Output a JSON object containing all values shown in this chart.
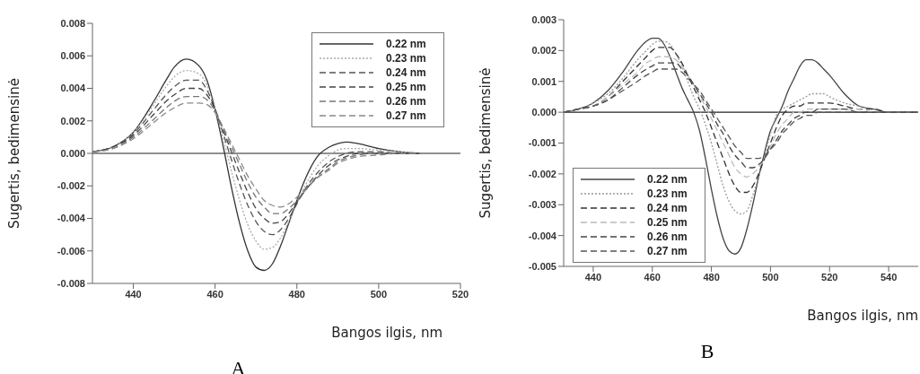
{
  "chart_data": [
    {
      "type": "line",
      "xlabel": "Bangos ilgis, nm",
      "ylabel": "Sugertis, bedimensinė",
      "annotations": [
        "A"
      ],
      "x": [
        430,
        435,
        440,
        445,
        448,
        450,
        453,
        456,
        458,
        460,
        462,
        464,
        466,
        468,
        470,
        472,
        474,
        476,
        478,
        480,
        482,
        485,
        488,
        490,
        492,
        495,
        500,
        505,
        510
      ],
      "xlim": [
        430,
        520
      ],
      "xticks": [
        440,
        460,
        480,
        500,
        520
      ],
      "ylim": [
        -0.008,
        0.008
      ],
      "yticks": [
        -0.008,
        -0.006,
        -0.004,
        -0.002,
        {
          "value": 0,
          "label": "0.000"
        },
        0.002,
        0.004,
        0.006,
        0.008
      ],
      "ref_lines": [
        {
          "axis": "y",
          "value": 0,
          "color": "#222222"
        }
      ],
      "legend": "top right",
      "grid": false,
      "marker": "none",
      "series": [
        {
          "name": "0.22 nm",
          "color": "#333333",
          "line_style": "solid",
          "values": [
            0.0001,
            0.0004,
            0.0013,
            0.0032,
            0.0045,
            0.0053,
            0.0058,
            0.0054,
            0.0045,
            0.0027,
            0.0004,
            -0.0021,
            -0.0043,
            -0.006,
            -0.007,
            -0.0072,
            -0.0068,
            -0.0057,
            -0.0043,
            -0.0029,
            -0.0016,
            -0.0002,
            0.0004,
            0.0006,
            0.0007,
            0.0006,
            0.0003,
            0.0001,
            0
          ]
        },
        {
          "name": "0.23 nm",
          "color": "#aaaaaa",
          "line_style": "dotted",
          "values": [
            0.0001,
            0.0004,
            0.0013,
            0.003,
            0.0041,
            0.0047,
            0.0051,
            0.0049,
            0.0042,
            0.0027,
            0.0009,
            -0.0011,
            -0.0029,
            -0.0044,
            -0.0054,
            -0.0059,
            -0.0058,
            -0.0052,
            -0.0042,
            -0.0031,
            -0.002,
            -0.0008,
            -0.0001,
            0.0002,
            0.0003,
            0.0003,
            0.0002,
            0.0001,
            0
          ]
        },
        {
          "name": "0.24 nm",
          "color": "#555555",
          "line_style": "dashed",
          "values": [
            0.0001,
            0.0004,
            0.0012,
            0.0027,
            0.0036,
            0.0041,
            0.0045,
            0.0045,
            0.0039,
            0.0027,
            0.0012,
            -0.0004,
            -0.0019,
            -0.0032,
            -0.0042,
            -0.0048,
            -0.005,
            -0.0047,
            -0.004,
            -0.0031,
            -0.0022,
            -0.0012,
            -0.0005,
            -0.0002,
            0,
            0.0001,
            0.0001,
            0,
            0
          ]
        },
        {
          "name": "0.25 nm",
          "color": "#444444",
          "line_style": "dashed",
          "values": [
            0.0001,
            0.0004,
            0.0011,
            0.0024,
            0.0032,
            0.0036,
            0.004,
            0.004,
            0.0036,
            0.0027,
            0.0014,
            0.0001,
            -0.0012,
            -0.0024,
            -0.0034,
            -0.004,
            -0.0043,
            -0.0042,
            -0.0037,
            -0.003,
            -0.0023,
            -0.0014,
            -0.0007,
            -0.0004,
            -0.0002,
            0,
            0,
            0,
            0
          ]
        },
        {
          "name": "0.26 nm",
          "color": "#777777",
          "line_style": "dashed",
          "values": [
            0.0001,
            0.0003,
            0.001,
            0.0021,
            0.0028,
            0.0032,
            0.0035,
            0.0035,
            0.0033,
            0.0026,
            0.0015,
            0.0004,
            -0.0007,
            -0.0018,
            -0.0027,
            -0.0033,
            -0.0037,
            -0.0037,
            -0.0034,
            -0.0029,
            -0.0023,
            -0.0015,
            -0.0009,
            -0.0005,
            -0.0003,
            -0.0001,
            0,
            0,
            0
          ]
        },
        {
          "name": "0.27 nm",
          "color": "#888888",
          "line_style": "dashed",
          "values": [
            0.0001,
            0.0003,
            0.0009,
            0.0019,
            0.0025,
            0.0028,
            0.0031,
            0.0031,
            0.003,
            0.0025,
            0.0016,
            0.0006,
            -0.0004,
            -0.0014,
            -0.0022,
            -0.0029,
            -0.0032,
            -0.0033,
            -0.0031,
            -0.0027,
            -0.0022,
            -0.0015,
            -0.001,
            -0.0006,
            -0.0004,
            -0.0002,
            -0.0001,
            0,
            0
          ]
        }
      ]
    },
    {
      "type": "line",
      "xlabel": "Bangos ilgis, nm",
      "ylabel": "Sugertis, bedimensinė",
      "annotations": [
        "B"
      ],
      "x": [
        430,
        435,
        440,
        445,
        450,
        455,
        458,
        460,
        462,
        464,
        466,
        468,
        470,
        472,
        474,
        476,
        478,
        480,
        482,
        484,
        486,
        488,
        490,
        492,
        494,
        496,
        498,
        500,
        502,
        504,
        506,
        508,
        510,
        512,
        514,
        516,
        518,
        520,
        525,
        530,
        535,
        540,
        545,
        550
      ],
      "xlim": [
        430,
        550
      ],
      "xticks": [
        440,
        460,
        480,
        500,
        520,
        540
      ],
      "ylim": [
        -0.005,
        0.003
      ],
      "yticks": [
        -0.005,
        -0.004,
        -0.003,
        -0.002,
        -0.001,
        {
          "value": 0,
          "label": "0.000"
        },
        0.001,
        0.002,
        0.003
      ],
      "ref_lines": [
        {
          "axis": "y",
          "value": 0,
          "color": "#222222"
        }
      ],
      "legend": "bottom left",
      "grid": false,
      "marker": "none",
      "series": [
        {
          "name": "0.22 nm",
          "color": "#444444",
          "line_style": "solid",
          "values": [
            0,
            0.0001,
            0.0003,
            0.0007,
            0.0013,
            0.002,
            0.0023,
            0.0024,
            0.0024,
            0.0022,
            0.0018,
            0.0013,
            0.0008,
            0.0004,
            0,
            -0.0006,
            -0.0015,
            -0.0025,
            -0.0034,
            -0.0041,
            -0.0045,
            -0.0046,
            -0.0044,
            -0.0038,
            -0.003,
            -0.0021,
            -0.0013,
            -0.0006,
            -0.0002,
            0.0002,
            0.0007,
            0.0011,
            0.0015,
            0.0017,
            0.0017,
            0.0016,
            0.0014,
            0.0012,
            0.0006,
            0.0002,
            0.0001,
            0,
            0,
            0
          ]
        },
        {
          "name": "0.23 nm",
          "color": "#999999",
          "line_style": "dotted",
          "values": [
            0,
            0.0001,
            0.0003,
            0.0006,
            0.0011,
            0.0017,
            0.002,
            0.0022,
            0.0023,
            0.0023,
            0.0022,
            0.0019,
            0.0015,
            0.001,
            0.0005,
            0.0001,
            -0.0004,
            -0.001,
            -0.0017,
            -0.0024,
            -0.0029,
            -0.0032,
            -0.0033,
            -0.0032,
            -0.0027,
            -0.0021,
            -0.0014,
            -0.0007,
            -0.0001,
            0.0001,
            0.0002,
            0.0003,
            0.0004,
            0.0005,
            0.0006,
            0.0006,
            0.0006,
            0.0005,
            0.0003,
            0.0002,
            0.0001,
            0,
            0,
            0
          ]
        },
        {
          "name": "0.24 nm",
          "color": "#333333",
          "line_style": "dashed",
          "values": [
            0,
            0.0001,
            0.0002,
            0.0005,
            0.001,
            0.0015,
            0.0018,
            0.002,
            0.0021,
            0.0021,
            0.0021,
            0.0019,
            0.0016,
            0.0012,
            0.0008,
            0.0004,
            0,
            -0.0005,
            -0.001,
            -0.0015,
            -0.002,
            -0.0024,
            -0.0026,
            -0.0026,
            -0.0024,
            -0.002,
            -0.0015,
            -0.001,
            -0.0005,
            -0.0001,
            0.0001,
            0.0002,
            0.0002,
            0.0003,
            0.0003,
            0.0003,
            0.0003,
            0.0003,
            0.0002,
            0.0001,
            0.0001,
            0,
            0,
            0
          ]
        },
        {
          "name": "0.25 nm",
          "color": "#bbbbbb",
          "line_style": "dashed",
          "values": [
            0,
            0.0001,
            0.0002,
            0.0005,
            0.0009,
            0.0013,
            0.0016,
            0.0017,
            0.0018,
            0.0018,
            0.0018,
            0.0017,
            0.0015,
            0.0012,
            0.0009,
            0.0005,
            0.0002,
            -0.0002,
            -0.0006,
            -0.001,
            -0.0014,
            -0.0018,
            -0.002,
            -0.0021,
            -0.002,
            -0.0018,
            -0.0015,
            -0.0011,
            -0.0007,
            -0.0004,
            -0.0002,
            0,
            0,
            0.0001,
            0.0001,
            0.0001,
            0.0001,
            0.0001,
            0.0001,
            0.0001,
            0,
            0,
            0,
            0
          ]
        },
        {
          "name": "0.26 nm",
          "color": "#444444",
          "line_style": "dashed",
          "values": [
            0,
            0.0001,
            0.0002,
            0.0004,
            0.0008,
            0.0012,
            0.0014,
            0.0015,
            0.0016,
            0.0016,
            0.0016,
            0.0016,
            0.0014,
            0.0012,
            0.0009,
            0.0006,
            0.0003,
            0,
            -0.0004,
            -0.0007,
            -0.0011,
            -0.0014,
            -0.0016,
            -0.0018,
            -0.0018,
            -0.0017,
            -0.0015,
            -0.0012,
            -0.0009,
            -0.0006,
            -0.0004,
            -0.0002,
            -0.0001,
            0,
            0,
            0.0001,
            0.0001,
            0.0001,
            0.0001,
            0,
            0,
            0,
            0,
            0
          ]
        },
        {
          "name": "0.27 nm",
          "color": "#555555",
          "line_style": "dashed",
          "values": [
            0,
            0.0001,
            0.0002,
            0.0004,
            0.0007,
            0.001,
            0.0012,
            0.0013,
            0.0014,
            0.0014,
            0.0014,
            0.0014,
            0.0013,
            0.0011,
            0.0009,
            0.0007,
            0.0004,
            0.0001,
            -0.0002,
            -0.0005,
            -0.0008,
            -0.0011,
            -0.0013,
            -0.0015,
            -0.0015,
            -0.0015,
            -0.0014,
            -0.0012,
            -0.001,
            -0.0007,
            -0.0005,
            -0.0003,
            -0.0002,
            -0.0001,
            -0.0001,
            0,
            0,
            0,
            0,
            0,
            0,
            0,
            0,
            0
          ]
        }
      ]
    }
  ]
}
